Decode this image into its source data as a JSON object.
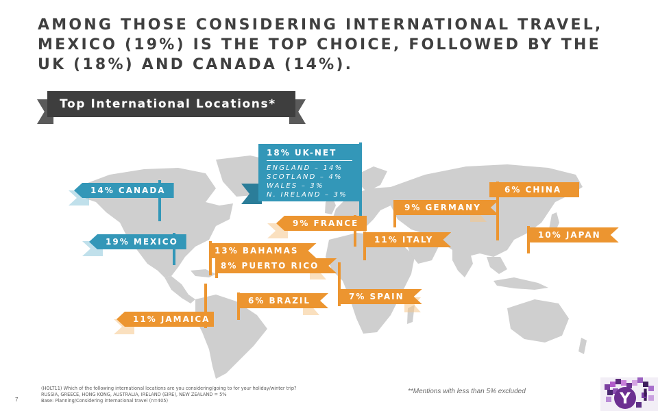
{
  "title_lines": [
    "AMONG THOSE CONSIDERING INTERNATIONAL TRAVEL,",
    "MEXICO (19%) IS THE TOP CHOICE, FOLLOWED BY THE",
    "UK (18%) AND CANADA (14%)."
  ],
  "section_label": "Top International Locations*",
  "chart_data": {
    "type": "map",
    "title": "Top International Locations*",
    "unit": "%",
    "locations": [
      {
        "name": "CANADA",
        "value": 14,
        "label": "14% CANADA",
        "color": "#3397b8"
      },
      {
        "name": "MEXICO",
        "value": 19,
        "label": "19% MEXICO",
        "color": "#3397b8"
      },
      {
        "name": "UK-NET",
        "value": 18,
        "label": "18% UK-NET",
        "color": "#3397b8",
        "breakdown": [
          {
            "name": "ENGLAND",
            "value": 14,
            "label": "ENGLAND – 14%"
          },
          {
            "name": "SCOTLAND",
            "value": 4,
            "label": "SCOTLAND – 4%"
          },
          {
            "name": "WALES",
            "value": 3,
            "label": "WALES – 3%"
          },
          {
            "name": "N. IRELAND",
            "value": 3,
            "label": "N. IRELAND – 3%"
          }
        ]
      },
      {
        "name": "FRANCE",
        "value": 9,
        "label": "9% FRANCE",
        "color": "#ec9530"
      },
      {
        "name": "GERMANY",
        "value": 9,
        "label": "9% GERMANY",
        "color": "#ec9530"
      },
      {
        "name": "ITALY",
        "value": 11,
        "label": "11% ITALY",
        "color": "#ec9530"
      },
      {
        "name": "CHINA",
        "value": 6,
        "label": "6% CHINA",
        "color": "#ec9530"
      },
      {
        "name": "JAPAN",
        "value": 10,
        "label": "10% JAPAN",
        "color": "#ec9530"
      },
      {
        "name": "BAHAMAS",
        "value": 13,
        "label": "13% BAHAMAS",
        "color": "#ec9530"
      },
      {
        "name": "PUERTO RICO",
        "value": 8,
        "label": "8% PUERTO RICO",
        "color": "#ec9530"
      },
      {
        "name": "SPAIN",
        "value": 7,
        "label": "7% SPAIN",
        "color": "#ec9530"
      },
      {
        "name": "BRAZIL",
        "value": 6,
        "label": "6% BRAZIL",
        "color": "#ec9530"
      },
      {
        "name": "JAMAICA",
        "value": 11,
        "label": "11% JAMAICA",
        "color": "#ec9530"
      }
    ]
  },
  "footnote_lines": [
    "(HOLT11) Which of the following international locations are you considering/going to for your holiday/winter trip?",
    "RUSSIA, GREECE, HONG KONG, AUSTRALIA, IRELAND (EIRE), NEW ZEALAND = 5%",
    "Base: Planning/Considering international travel (n=405)"
  ],
  "excluded_note": "**Mentions with less than 5% excluded",
  "page_number": "7",
  "colors": {
    "title": "#3f3f3f",
    "teal": "#3397b8",
    "orange": "#ec9530",
    "map": "#cfcfcf",
    "banner": "#3e3e3e"
  },
  "logo_icon": "yahoo-logo-icon"
}
